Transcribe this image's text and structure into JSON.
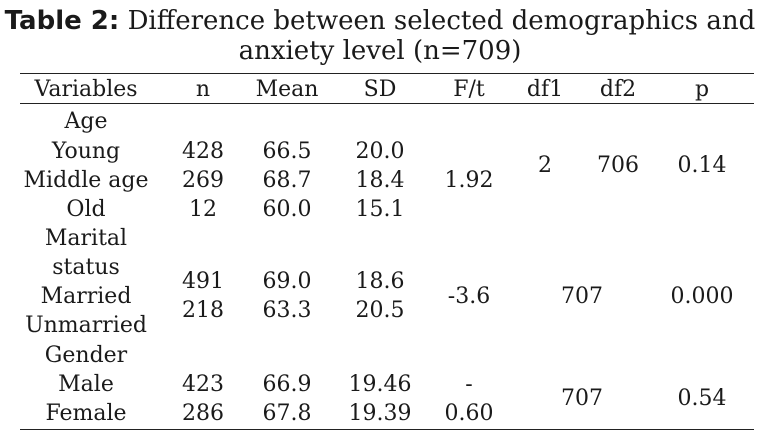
{
  "caption": {
    "label": "Table 2:",
    "line1": "Difference between selected demographics and",
    "line2": "anxiety level (n=709)"
  },
  "headers": {
    "variables": "Variables",
    "n": "n",
    "mean": "Mean",
    "sd": "SD",
    "ft": "F/t",
    "df1": "df1",
    "df2": "df2",
    "p": "p"
  },
  "age": {
    "label": "Age",
    "rows": [
      {
        "name": "Young",
        "n": "428",
        "mean": "66.5",
        "sd": "20.0"
      },
      {
        "name": "Middle age",
        "n": "269",
        "mean": "68.7",
        "sd": "18.4"
      },
      {
        "name": "Old",
        "n": "12",
        "mean": "60.0",
        "sd": "15.1"
      }
    ],
    "ft": "1.92",
    "df1": "2",
    "df2": "706",
    "p": "0.14"
  },
  "marital": {
    "label_line1": "Marital",
    "label_line2": "status",
    "rows": [
      {
        "name": "Married",
        "n": "491",
        "mean": "69.0",
        "sd": "18.6"
      },
      {
        "name": "Unmarried",
        "n": "218",
        "mean": "63.3",
        "sd": "20.5"
      }
    ],
    "ft": "-3.6",
    "df": "707",
    "p": "0.000"
  },
  "gender": {
    "label": "Gender",
    "rows": [
      {
        "name": "Male",
        "n": "423",
        "mean": "66.9",
        "sd": "19.46"
      },
      {
        "name": "Female",
        "n": "286",
        "mean": "67.8",
        "sd": "19.39"
      }
    ],
    "ft_line1": "-",
    "ft_line2": "0.60",
    "df": "707",
    "p": "0.54"
  }
}
